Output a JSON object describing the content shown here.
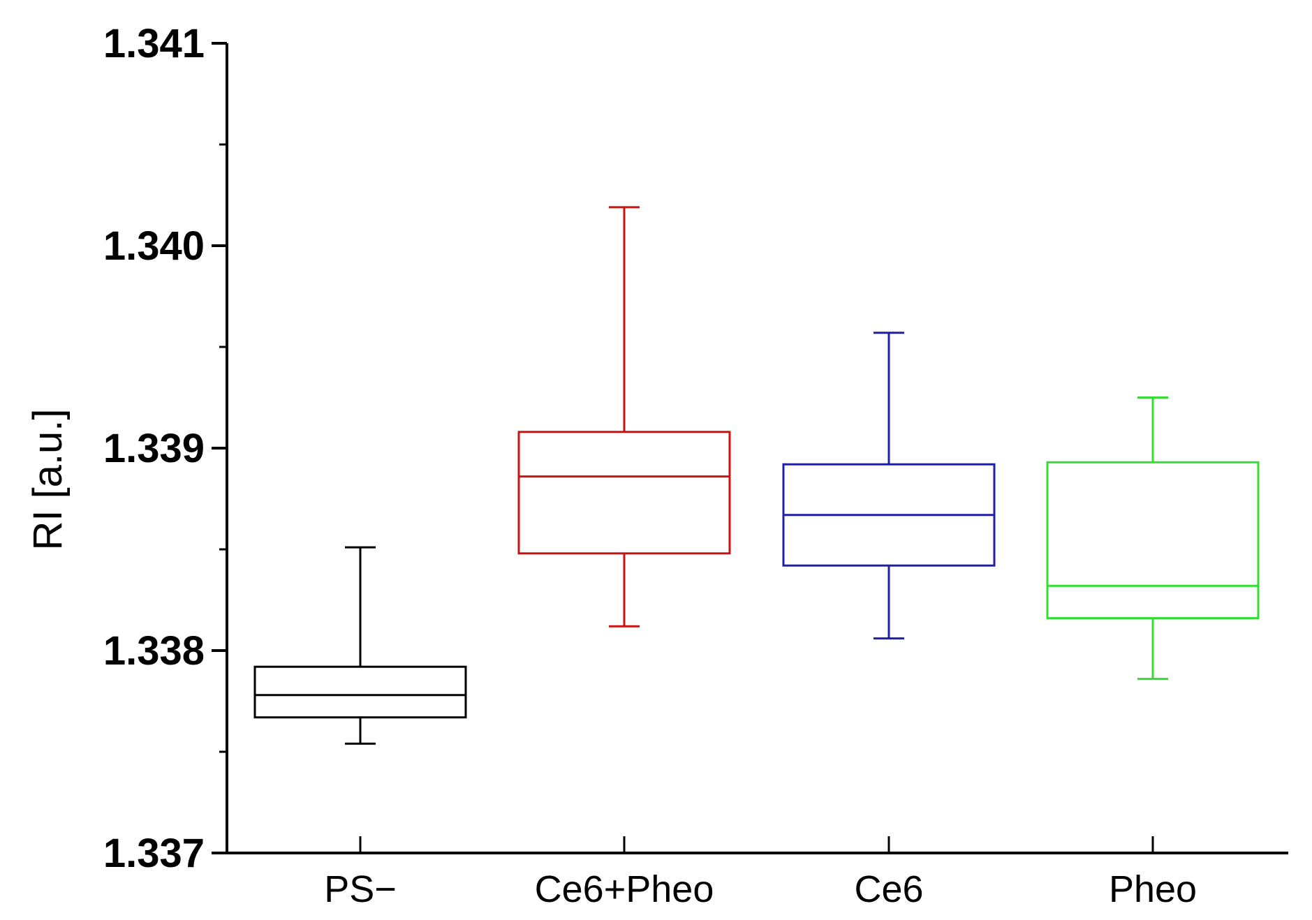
{
  "chart_data": {
    "type": "box",
    "title": "",
    "xlabel": "",
    "ylabel": "RI [a.u.]",
    "ylim": [
      1.337,
      1.341
    ],
    "yticks": [
      "1.337",
      "1.338",
      "1.339",
      "1.340",
      "1.341"
    ],
    "grid": false,
    "categories": [
      "PS−",
      "Ce6+Pheo",
      "Ce6",
      "Pheo"
    ],
    "boxes": [
      {
        "name": "PS−",
        "color": "#000000",
        "whisker_low": 1.33754,
        "q1": 1.33767,
        "median": 1.33778,
        "q3": 1.33792,
        "whisker_high": 1.33851
      },
      {
        "name": "Ce6+Pheo",
        "color": "#cc1111",
        "whisker_low": 1.33812,
        "q1": 1.33848,
        "median": 1.33886,
        "q3": 1.33908,
        "whisker_high": 1.34019
      },
      {
        "name": "Ce6",
        "color": "#1f1fa8",
        "whisker_low": 1.33806,
        "q1": 1.33842,
        "median": 1.33867,
        "q3": 1.33892,
        "whisker_high": 1.33957
      },
      {
        "name": "Pheo",
        "color": "#33dd33",
        "whisker_low": 1.33786,
        "q1": 1.33816,
        "median": 1.33832,
        "q3": 1.33893,
        "whisker_high": 1.33925
      }
    ]
  }
}
